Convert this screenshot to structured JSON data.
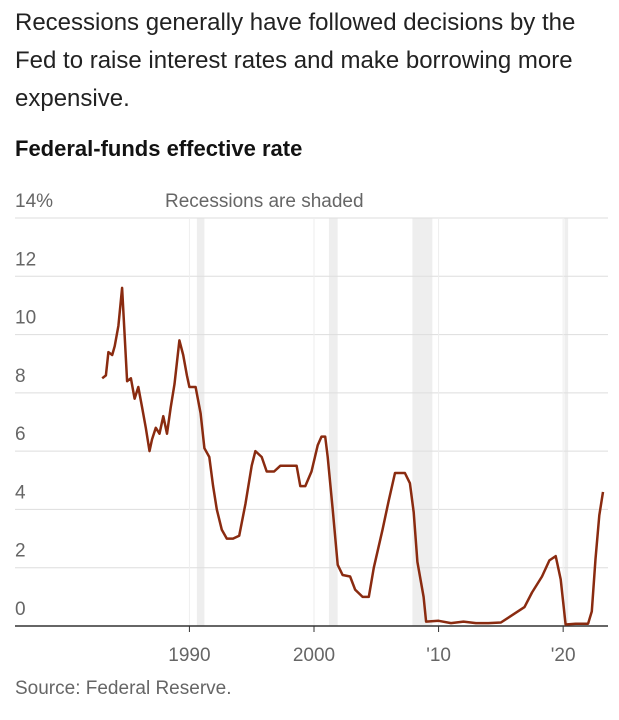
{
  "chart_data": {
    "type": "line",
    "subtitle": "Recessions generally have followed decisions by the Fed to raise interest rates and make borrowing more expensive.",
    "title": "Federal-funds effective rate",
    "annotation": "Recessions are shaded",
    "source": "Source: Federal Reserve.",
    "recessions": [
      [
        1990.6,
        1991.2
      ],
      [
        2001.2,
        2001.9
      ],
      [
        2007.9,
        2009.5
      ],
      [
        2020.1,
        2020.4
      ]
    ],
    "xlim": [
      1976,
      2023.6
    ],
    "xticks": [
      1990,
      2000,
      {
        "value": 2010,
        "label": "'10"
      },
      {
        "value": 2020,
        "label": "'20"
      }
    ],
    "ylim": [
      0,
      14
    ],
    "yticks": [
      0,
      2,
      4,
      6,
      8,
      10,
      12,
      {
        "value": 14,
        "label": "14%"
      }
    ],
    "grid": true,
    "series": [
      {
        "color": "#8a2b10",
        "x": [
          1983.0,
          1983.3,
          1983.5,
          1983.8,
          1984.0,
          1984.3,
          1984.6,
          1984.8,
          1985.0,
          1985.3,
          1985.6,
          1985.9,
          1986.2,
          1986.5,
          1986.8,
          1987.0,
          1987.3,
          1987.6,
          1987.9,
          1988.2,
          1988.5,
          1988.8,
          1989.2,
          1989.5,
          1989.8,
          1990.0,
          1990.5,
          1990.9,
          1991.2,
          1991.6,
          1991.9,
          1992.2,
          1992.6,
          1993.0,
          1993.5,
          1994.0,
          1994.5,
          1995.0,
          1995.3,
          1995.8,
          1996.2,
          1996.8,
          1997.3,
          1998.0,
          1998.6,
          1998.9,
          1999.3,
          1999.8,
          2000.3,
          2000.6,
          2000.9,
          2001.1,
          2001.5,
          2001.9,
          2002.3,
          2002.9,
          2003.3,
          2003.9,
          2004.4,
          2004.8,
          2005.5,
          2006.0,
          2006.5,
          2007.3,
          2007.7,
          2008.0,
          2008.3,
          2008.8,
          2009.0,
          2010.0,
          2011.0,
          2012.0,
          2013.0,
          2014.0,
          2015.0,
          2015.9,
          2016.9,
          2017.5,
          2018.3,
          2018.9,
          2019.4,
          2019.8,
          2020.2,
          2021.0,
          2022.0,
          2022.3,
          2022.6,
          2022.9,
          2023.2
        ],
        "values": [
          8.5,
          8.6,
          9.4,
          9.3,
          9.6,
          10.3,
          11.6,
          10.0,
          8.4,
          8.5,
          7.8,
          8.2,
          7.5,
          6.8,
          6.0,
          6.4,
          6.8,
          6.6,
          7.2,
          6.6,
          7.5,
          8.3,
          9.8,
          9.3,
          8.6,
          8.2,
          8.2,
          7.3,
          6.1,
          5.8,
          4.8,
          4.0,
          3.3,
          3.0,
          3.0,
          3.1,
          4.2,
          5.5,
          6.0,
          5.8,
          5.3,
          5.3,
          5.5,
          5.5,
          5.5,
          4.8,
          4.8,
          5.3,
          6.2,
          6.5,
          6.5,
          5.8,
          4.0,
          2.1,
          1.75,
          1.7,
          1.25,
          1.0,
          1.0,
          2.0,
          3.3,
          4.3,
          5.25,
          5.25,
          4.9,
          3.9,
          2.2,
          1.0,
          0.15,
          0.18,
          0.1,
          0.15,
          0.1,
          0.1,
          0.12,
          0.37,
          0.65,
          1.15,
          1.7,
          2.25,
          2.4,
          1.6,
          0.05,
          0.08,
          0.08,
          0.5,
          2.3,
          3.8,
          4.6
        ]
      }
    ]
  }
}
